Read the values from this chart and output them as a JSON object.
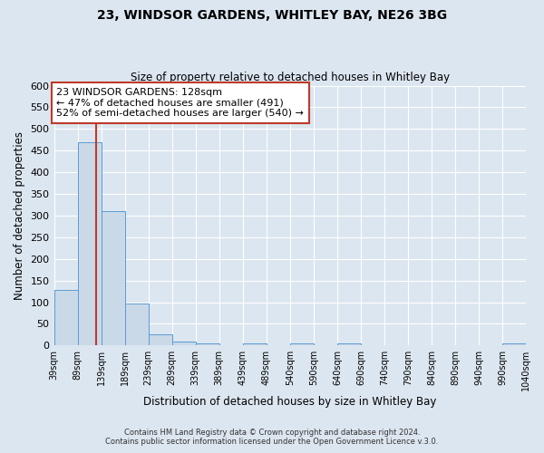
{
  "title": "23, WINDSOR GARDENS, WHITLEY BAY, NE26 3BG",
  "subtitle": "Size of property relative to detached houses in Whitley Bay",
  "xlabel": "Distribution of detached houses by size in Whitley Bay",
  "ylabel": "Number of detached properties",
  "bar_edges": [
    39,
    89,
    139,
    189,
    239,
    289,
    339,
    389,
    439,
    489,
    540,
    590,
    640,
    690,
    740,
    790,
    840,
    890,
    940,
    990,
    1040
  ],
  "bar_heights": [
    128,
    470,
    311,
    96,
    26,
    10,
    5,
    0,
    5,
    0,
    5,
    0,
    5,
    0,
    0,
    0,
    0,
    0,
    0,
    5
  ],
  "bar_color": "#c9d9e8",
  "bar_edge_color": "#5b9bd5",
  "vline_x": 128,
  "vline_color": "#c0392b",
  "ylim": [
    0,
    600
  ],
  "yticks": [
    0,
    50,
    100,
    150,
    200,
    250,
    300,
    350,
    400,
    450,
    500,
    550,
    600
  ],
  "annotation_title": "23 WINDSOR GARDENS: 128sqm",
  "annotation_line1": "← 47% of detached houses are smaller (491)",
  "annotation_line2": "52% of semi-detached houses are larger (540) →",
  "annotation_box_color": "#ffffff",
  "annotation_box_edge": "#c0392b",
  "footer1": "Contains HM Land Registry data © Crown copyright and database right 2024.",
  "footer2": "Contains public sector information licensed under the Open Government Licence v.3.0.",
  "background_color": "#dce6f0",
  "grid_color": "#ffffff",
  "tick_labels": [
    "39sqm",
    "89sqm",
    "139sqm",
    "189sqm",
    "239sqm",
    "289sqm",
    "339sqm",
    "389sqm",
    "439sqm",
    "489sqm",
    "540sqm",
    "590sqm",
    "640sqm",
    "690sqm",
    "740sqm",
    "790sqm",
    "840sqm",
    "890sqm",
    "940sqm",
    "990sqm",
    "1040sqm"
  ]
}
